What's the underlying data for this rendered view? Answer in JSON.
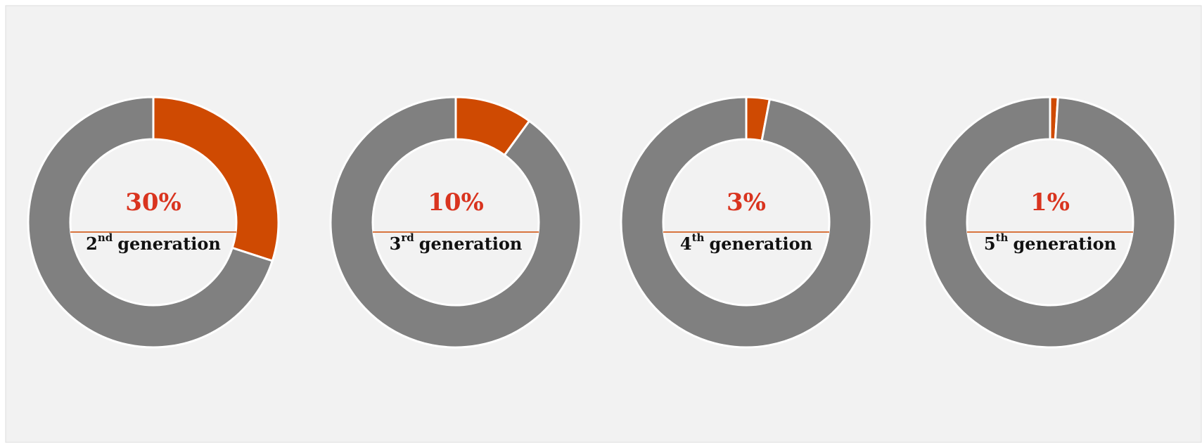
{
  "chart_data": [
    {
      "type": "pie",
      "donut": true,
      "values": [
        30,
        70
      ],
      "colors": [
        "#cf4a02",
        "#808080"
      ],
      "value_label": "30%",
      "label": {
        "number": "2",
        "suffix": "nd",
        "text": "generation"
      }
    },
    {
      "type": "pie",
      "donut": true,
      "values": [
        10,
        90
      ],
      "colors": [
        "#cf4a02",
        "#808080"
      ],
      "value_label": "10%",
      "label": {
        "number": "3",
        "suffix": "rd",
        "text": "generation"
      }
    },
    {
      "type": "pie",
      "donut": true,
      "values": [
        3,
        97
      ],
      "colors": [
        "#cf4a02",
        "#808080"
      ],
      "value_label": "3%",
      "label": {
        "number": "4",
        "suffix": "th",
        "text": "generation"
      }
    },
    {
      "type": "pie",
      "donut": true,
      "values": [
        1,
        99
      ],
      "colors": [
        "#cf4a02",
        "#808080"
      ],
      "value_label": "1%",
      "label": {
        "number": "5",
        "suffix": "th",
        "text": "generation"
      }
    }
  ]
}
